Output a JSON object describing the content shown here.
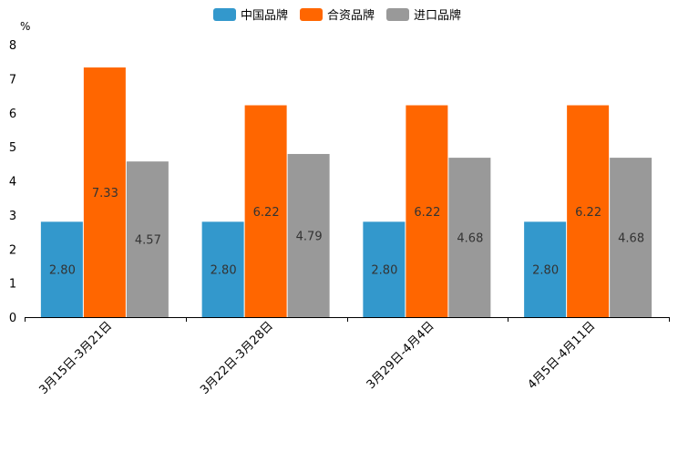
{
  "chart_data": {
    "type": "bar",
    "unit": "%",
    "categories": [
      "3月15日-3月21日",
      "3月22日-3月28日",
      "3月29日-4月4日",
      "4月5日-4月11日"
    ],
    "series": [
      {
        "name": "中国品牌",
        "color": "#3398cc",
        "values": [
          2.8,
          2.8,
          2.8,
          2.8
        ],
        "labels": [
          "2.80",
          "2.80",
          "2.80",
          "2.80"
        ]
      },
      {
        "name": "合资品牌",
        "color": "#ff6600",
        "values": [
          7.33,
          6.22,
          6.22,
          6.22
        ],
        "labels": [
          "7.33",
          "6.22",
          "6.22",
          "6.22"
        ]
      },
      {
        "name": "进口品牌",
        "color": "#999999",
        "values": [
          4.57,
          4.79,
          4.68,
          4.68
        ],
        "labels": [
          "4.57",
          "4.79",
          "4.68",
          "4.68"
        ]
      }
    ],
    "ylim": [
      0,
      8
    ],
    "yticks": [
      "0",
      "1",
      "2",
      "3",
      "4",
      "5",
      "6",
      "7",
      "8"
    ],
    "legend_position": "top-center"
  }
}
